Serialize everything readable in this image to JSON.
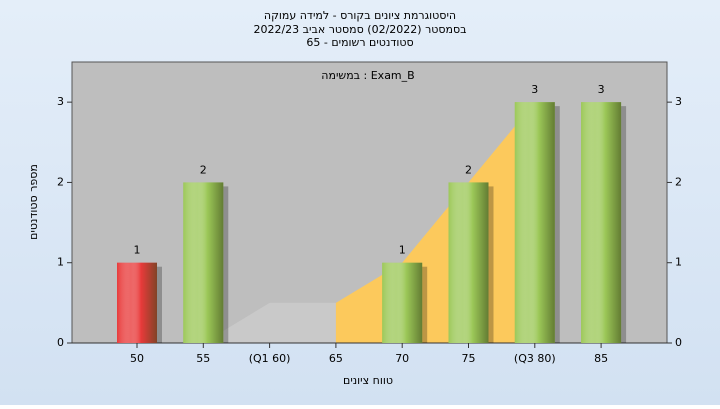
{
  "chart_data": {
    "type": "bar",
    "title": "היסטוגרמת ציונים בקורס - למידה עמוקה",
    "subtitle": "בסמסטר  (02/2022)  סמסטר אביב 2022/23",
    "subtitle2": "סטודנטים רשומים - 65",
    "annotation": "במשימה : Exam_B",
    "x_label": "טווח ציונים",
    "y_label": "מספר סטודנטים",
    "categories": [
      "50",
      "55",
      "(Q1 60)",
      "65",
      "70",
      "75",
      "(Q3 80)",
      "85"
    ],
    "values": [
      1,
      2,
      null,
      null,
      1,
      2,
      3,
      3
    ],
    "colors": [
      "#e83a3a",
      "#9cc858",
      "#9cc858",
      "#9cc858",
      "#9cc858",
      "#9cc858",
      "#9cc858",
      "#9cc858"
    ],
    "areas": [
      {
        "color": "#c9c9c9",
        "values": [
          null,
          0,
          0.5,
          0.5,
          null,
          null,
          null,
          null
        ]
      },
      {
        "color": "#fcc95c",
        "values": [
          null,
          null,
          null,
          0.5,
          1,
          2,
          3,
          null
        ]
      }
    ],
    "ylim": [
      0,
      3.5
    ],
    "yticks": [
      0,
      1,
      2,
      3
    ],
    "y2lim": [
      0,
      3.5
    ],
    "y2ticks": [
      0,
      1,
      2,
      3
    ]
  }
}
